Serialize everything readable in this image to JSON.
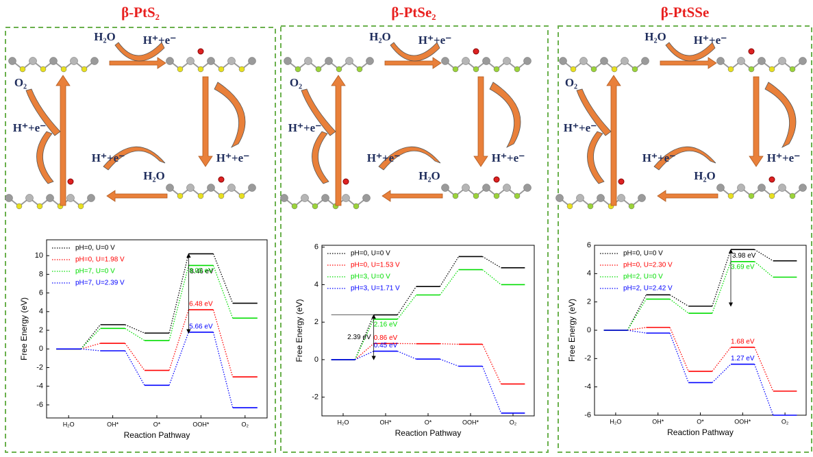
{
  "chart_data": [
    {
      "type": "step",
      "title": "β-PtS₂",
      "xlabel": "Reaction Pathway",
      "ylabel": "Free Energy (eV)",
      "categories": [
        "H₂O",
        "OH*",
        "O*",
        "OOH*",
        "O₂"
      ],
      "series": [
        {
          "name": "pH=0, U=0 V",
          "color": "#000000",
          "values": [
            0,
            2.6,
            1.7,
            10.2,
            4.9
          ]
        },
        {
          "name": "pH=0, U=1.98 V",
          "color": "#ff0000",
          "values": [
            0,
            0.6,
            -2.3,
            4.2,
            -3.0
          ]
        },
        {
          "name": "pH=7, U=0 V",
          "color": "#00dd00",
          "values": [
            0,
            2.2,
            0.9,
            8.95,
            3.3
          ]
        },
        {
          "name": "pH=7, U=2.39 V",
          "color": "#0000ff",
          "values": [
            0,
            -0.2,
            -3.9,
            1.8,
            -6.3
          ]
        }
      ],
      "ylim": [
        -7.4,
        11.7
      ],
      "yticks": [
        -6,
        -4,
        -2,
        0,
        2,
        4,
        6,
        8,
        10
      ],
      "annotations": [
        "8.46 eV",
        "8.05 eV",
        "6.48 eV",
        "5.66 eV"
      ]
    },
    {
      "type": "step",
      "title": "β-PtSe₂",
      "xlabel": "Reaction Pathway",
      "ylabel": "Free Energy (eV)",
      "categories": [
        "H₂O",
        "OH*",
        "O*",
        "OOH*",
        "O₂"
      ],
      "series": [
        {
          "name": "pH=0, U=0 V",
          "color": "#000000",
          "values": [
            0,
            2.39,
            3.9,
            5.5,
            4.9
          ]
        },
        {
          "name": "pH=0, U=1.53 V",
          "color": "#ff0000",
          "values": [
            0,
            0.86,
            0.85,
            0.82,
            -1.3
          ]
        },
        {
          "name": "pH=3, U=0 V",
          "color": "#00dd00",
          "values": [
            0,
            2.16,
            3.45,
            4.8,
            4.0
          ]
        },
        {
          "name": "pH=3, U=1.71 V",
          "color": "#0000ff",
          "values": [
            0,
            0.45,
            0.03,
            -0.35,
            -2.85
          ]
        }
      ],
      "ylim": [
        -3,
        6.1
      ],
      "yticks": [
        -2,
        0,
        2,
        4,
        6
      ],
      "annotations": [
        "2.39 eV",
        "2.16 eV",
        "0.86 eV",
        "0.45 eV"
      ]
    },
    {
      "type": "step",
      "title": "β-PtSSe",
      "xlabel": "Reaction Pathway",
      "ylabel": "Free Energy (eV)",
      "categories": [
        "H₂O",
        "OH*",
        "O*",
        "OOH*",
        "O₂"
      ],
      "series": [
        {
          "name": "pH=0, U=0 V",
          "color": "#000000",
          "values": [
            0,
            2.5,
            1.7,
            5.7,
            4.9
          ]
        },
        {
          "name": "pH=0, U=2.30 V",
          "color": "#ff0000",
          "values": [
            0,
            0.2,
            -2.9,
            -1.2,
            -4.3
          ]
        },
        {
          "name": "pH=2, U=0 V",
          "color": "#00dd00",
          "values": [
            0,
            2.2,
            1.2,
            4.85,
            3.75
          ]
        },
        {
          "name": "pH=2, U=2.42 V",
          "color": "#0000ff",
          "values": [
            0,
            -0.2,
            -3.7,
            -2.4,
            -6.0
          ]
        }
      ],
      "ylim": [
        -6,
        6
      ],
      "yticks": [
        -6,
        -4,
        -2,
        0,
        2,
        4,
        6
      ],
      "annotations": [
        "3.98 eV",
        "3.69 eV",
        "1.68 eV",
        "1.27 eV"
      ]
    }
  ],
  "schemes": [
    {
      "labels": [
        "H₂O",
        "H⁺+e⁻",
        "H⁺+e⁻",
        "H₂O",
        "H⁺+e⁻",
        "H⁺+e⁻",
        "O₂"
      ]
    },
    {
      "labels": [
        "H₂O",
        "H⁺+e⁻",
        "H⁺+e⁻",
        "H₂O",
        "H⁺+e⁻",
        "H⁺+e⁻",
        "O₂"
      ]
    },
    {
      "labels": [
        "H₂O",
        "H⁺+e⁻",
        "H⁺+e⁻",
        "H₂O",
        "H⁺+e⁻",
        "H⁺+e⁻",
        "O₂"
      ]
    }
  ]
}
